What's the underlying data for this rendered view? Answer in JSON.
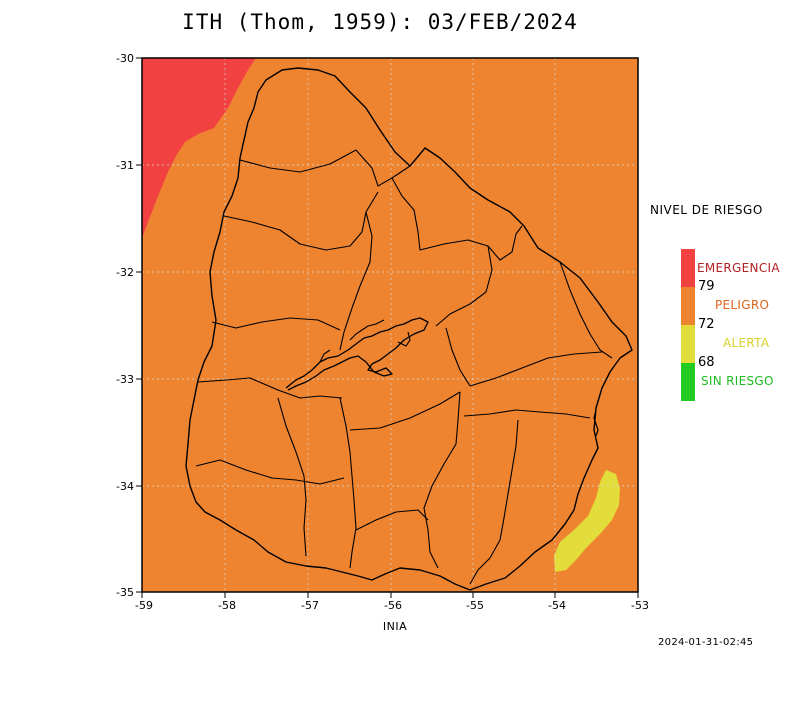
{
  "title": "ITH (Thom, 1959): 03/FEB/2024",
  "source_label": "INIA",
  "timestamp": "2024-01-31-02:45",
  "x_ticks": [
    "-59",
    "-58",
    "-57",
    "-56",
    "-55",
    "-54",
    "-53"
  ],
  "y_ticks": [
    "-30",
    "-31",
    "-32",
    "-33",
    "-34",
    "-35"
  ],
  "axes": {
    "xlim": [
      -59,
      -53
    ],
    "ylim": [
      -35,
      -30
    ],
    "grid": true
  },
  "legend": {
    "title": "NIVEL DE RIESGO",
    "levels": [
      {
        "label": "EMERGENCIA",
        "color": "#f24141",
        "label_color": "#b32020"
      },
      {
        "label": "PELIGRO",
        "color": "#ee8430",
        "label_color": "#e0641e"
      },
      {
        "label": "ALERTA",
        "color": "#e3dd3b",
        "label_color": "#d8cf2a"
      },
      {
        "label": "SIN RIESGO",
        "color": "#22cc22",
        "label_color": "#22bb22"
      }
    ],
    "thresholds": [
      "79",
      "72",
      "68"
    ]
  },
  "colors": {
    "background_level": "#ee8430",
    "emergencia": "#f24141",
    "alerta": "#e3dd3b",
    "border": "#000000"
  }
}
